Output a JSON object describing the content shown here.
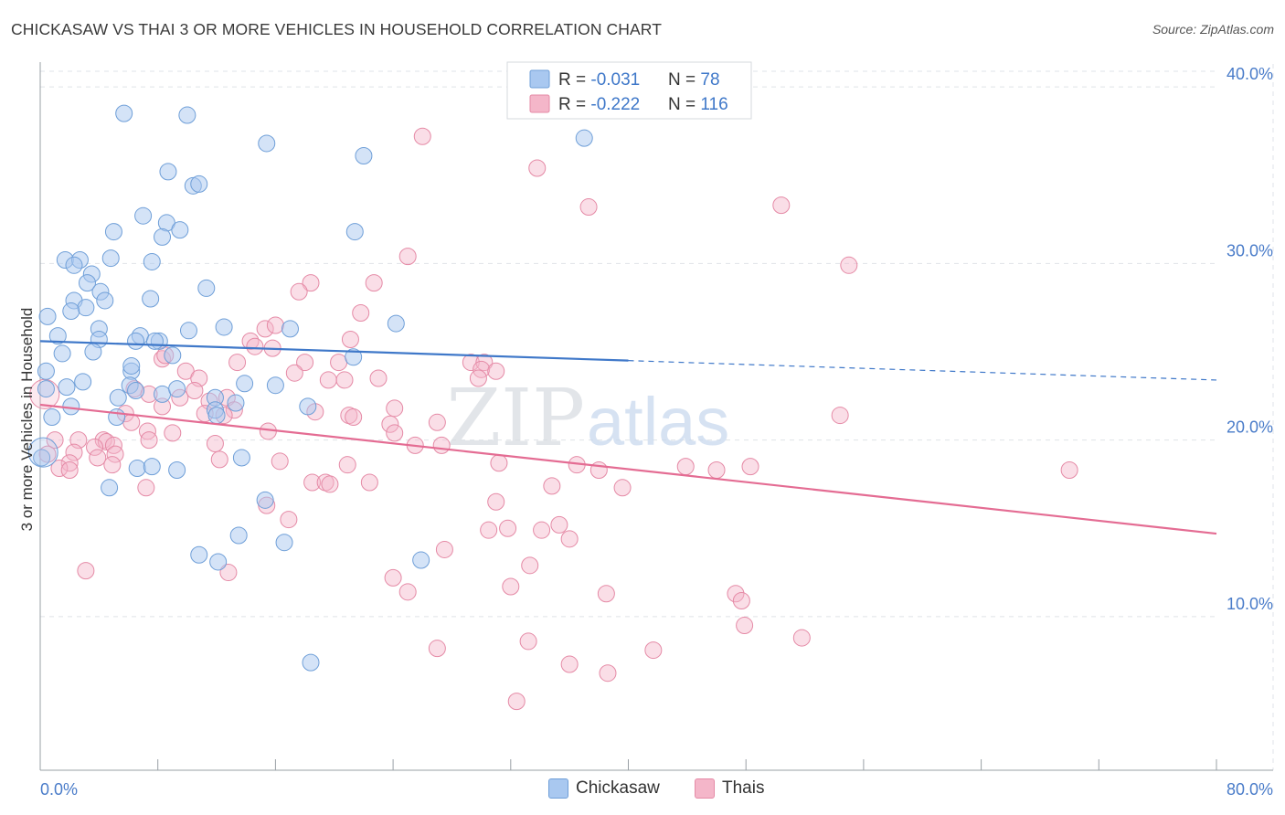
{
  "header": {
    "title": "CHICKASAW VS THAI 3 OR MORE VEHICLES IN HOUSEHOLD CORRELATION CHART",
    "source": "Source: ZipAtlas.com"
  },
  "watermark": {
    "zip": "ZIP",
    "atlas": "atlas"
  },
  "colors": {
    "blue_fill": "#a9c8f0",
    "blue_stroke": "#6f9fd8",
    "blue_line": "#3f78c9",
    "pink_fill": "#f4b6c9",
    "pink_stroke": "#e58aa6",
    "pink_line": "#e46c93",
    "axis_text": "#4a7cc9",
    "grid": "#dfe3e8"
  },
  "legend": {
    "rows": [
      {
        "r_label": "R = ",
        "r_value": "-0.031",
        "n_label": "N = ",
        "n_value": "78"
      },
      {
        "r_label": "R = ",
        "r_value": "-0.222",
        "n_label": "N = ",
        "n_value": "116"
      }
    ]
  },
  "chart_data": {
    "type": "scatter",
    "title": "CHICKASAW VS THAI 3 OR MORE VEHICLES IN HOUSEHOLD CORRELATION CHART",
    "xlabel": "",
    "ylabel": "3 or more Vehicles in Household",
    "xlim": [
      0,
      80
    ],
    "ylim": [
      1.3,
      41.3
    ],
    "x_tick_labels": [
      "0.0%",
      "80.0%"
    ],
    "y_ticks": [
      10,
      20,
      30,
      40
    ],
    "y_tick_labels": [
      "10.0%",
      "20.0%",
      "30.0%",
      "40.0%"
    ],
    "grid": true,
    "legend_position": "top-center",
    "series": [
      {
        "name": "Chickasaw",
        "color": "#a9c8f0",
        "trend": {
          "x0": 0,
          "y0": 25.6,
          "x1": 40,
          "y1": 24.5,
          "dash_x1": 80,
          "dash_y1": 23.4
        },
        "points": [
          [
            5.7,
            38.5
          ],
          [
            10.0,
            38.4
          ],
          [
            15.4,
            36.8
          ],
          [
            22.0,
            36.1
          ],
          [
            37.0,
            37.1
          ],
          [
            8.7,
            35.2
          ],
          [
            10.4,
            34.4
          ],
          [
            10.8,
            34.5
          ],
          [
            7.0,
            32.7
          ],
          [
            8.6,
            32.3
          ],
          [
            5.0,
            31.8
          ],
          [
            9.5,
            31.9
          ],
          [
            8.3,
            31.5
          ],
          [
            21.4,
            31.8
          ],
          [
            1.7,
            30.2
          ],
          [
            2.7,
            30.2
          ],
          [
            4.8,
            30.3
          ],
          [
            7.6,
            30.1
          ],
          [
            2.3,
            29.9
          ],
          [
            3.5,
            29.4
          ],
          [
            3.2,
            28.9
          ],
          [
            11.3,
            28.6
          ],
          [
            4.1,
            28.4
          ],
          [
            2.3,
            27.9
          ],
          [
            4.4,
            27.9
          ],
          [
            7.5,
            28.0
          ],
          [
            3.1,
            27.5
          ],
          [
            2.1,
            27.3
          ],
          [
            0.5,
            27.0
          ],
          [
            12.5,
            26.4
          ],
          [
            10.1,
            26.2
          ],
          [
            17.0,
            26.3
          ],
          [
            4.0,
            26.3
          ],
          [
            24.2,
            26.6
          ],
          [
            1.2,
            25.9
          ],
          [
            4.0,
            25.7
          ],
          [
            6.8,
            25.9
          ],
          [
            6.5,
            25.6
          ],
          [
            8.1,
            25.6
          ],
          [
            7.8,
            25.6
          ],
          [
            1.5,
            24.9
          ],
          [
            3.6,
            25.0
          ],
          [
            9.0,
            24.8
          ],
          [
            21.3,
            24.7
          ],
          [
            0.4,
            23.9
          ],
          [
            6.2,
            23.9
          ],
          [
            2.9,
            23.3
          ],
          [
            6.1,
            23.1
          ],
          [
            6.5,
            22.8
          ],
          [
            13.9,
            23.2
          ],
          [
            16.0,
            23.1
          ],
          [
            1.8,
            23.0
          ],
          [
            8.3,
            22.6
          ],
          [
            5.3,
            22.4
          ],
          [
            11.9,
            22.4
          ],
          [
            2.1,
            21.9
          ],
          [
            13.3,
            22.1
          ],
          [
            18.2,
            21.9
          ],
          [
            11.9,
            21.7
          ],
          [
            12.0,
            21.4
          ],
          [
            0.8,
            21.3
          ],
          [
            5.2,
            21.3
          ],
          [
            0.1,
            19.0
          ],
          [
            13.7,
            19.0
          ],
          [
            6.6,
            18.4
          ],
          [
            7.6,
            18.5
          ],
          [
            9.3,
            18.3
          ],
          [
            4.7,
            17.3
          ],
          [
            15.3,
            16.6
          ],
          [
            13.5,
            14.6
          ],
          [
            16.6,
            14.2
          ],
          [
            10.8,
            13.5
          ],
          [
            12.1,
            13.1
          ],
          [
            25.9,
            13.2
          ],
          [
            18.4,
            7.4
          ],
          [
            9.3,
            22.9
          ],
          [
            0.4,
            22.9
          ],
          [
            6.2,
            24.2
          ]
        ]
      },
      {
        "name": "Thais",
        "color": "#f4b6c9",
        "trend": {
          "x0": 0,
          "y0": 22.0,
          "x1": 80,
          "y1": 14.7
        },
        "points": [
          [
            26.0,
            37.2
          ],
          [
            33.8,
            35.4
          ],
          [
            37.3,
            33.2
          ],
          [
            50.4,
            33.3
          ],
          [
            25.0,
            30.4
          ],
          [
            55.0,
            29.9
          ],
          [
            18.4,
            28.9
          ],
          [
            17.6,
            28.4
          ],
          [
            22.7,
            28.9
          ],
          [
            21.8,
            27.2
          ],
          [
            15.3,
            26.3
          ],
          [
            16.0,
            26.5
          ],
          [
            14.3,
            25.6
          ],
          [
            14.6,
            25.3
          ],
          [
            21.1,
            25.7
          ],
          [
            15.8,
            25.2
          ],
          [
            8.3,
            24.6
          ],
          [
            8.5,
            24.8
          ],
          [
            13.4,
            24.4
          ],
          [
            18.0,
            24.4
          ],
          [
            20.3,
            24.4
          ],
          [
            29.3,
            24.4
          ],
          [
            30.2,
            24.4
          ],
          [
            30.0,
            24.0
          ],
          [
            31.0,
            23.9
          ],
          [
            29.8,
            23.5
          ],
          [
            9.9,
            23.9
          ],
          [
            10.8,
            23.5
          ],
          [
            17.3,
            23.8
          ],
          [
            19.6,
            23.4
          ],
          [
            23.0,
            23.5
          ],
          [
            6.4,
            22.9
          ],
          [
            10.5,
            22.8
          ],
          [
            7.4,
            22.6
          ],
          [
            9.5,
            22.4
          ],
          [
            11.5,
            22.2
          ],
          [
            12.7,
            22.4
          ],
          [
            8.3,
            21.9
          ],
          [
            20.7,
            23.4
          ],
          [
            24.1,
            21.8
          ],
          [
            13.2,
            21.7
          ],
          [
            5.8,
            21.5
          ],
          [
            11.2,
            21.5
          ],
          [
            12.5,
            21.4
          ],
          [
            18.7,
            21.6
          ],
          [
            21.0,
            21.4
          ],
          [
            21.3,
            21.3
          ],
          [
            54.4,
            21.4
          ],
          [
            6.2,
            21.0
          ],
          [
            23.8,
            20.9
          ],
          [
            27.0,
            21.0
          ],
          [
            15.5,
            20.5
          ],
          [
            7.3,
            20.5
          ],
          [
            9.0,
            20.4
          ],
          [
            24.1,
            20.4
          ],
          [
            2.6,
            20.0
          ],
          [
            4.3,
            20.0
          ],
          [
            4.5,
            19.9
          ],
          [
            5.0,
            19.7
          ],
          [
            3.7,
            19.6
          ],
          [
            7.4,
            20.0
          ],
          [
            11.9,
            19.8
          ],
          [
            25.5,
            19.7
          ],
          [
            27.3,
            19.7
          ],
          [
            1.0,
            20.0
          ],
          [
            0.5,
            19.2
          ],
          [
            2.3,
            19.3
          ],
          [
            3.9,
            19.0
          ],
          [
            5.1,
            19.2
          ],
          [
            2.0,
            18.7
          ],
          [
            1.3,
            18.4
          ],
          [
            2.0,
            18.3
          ],
          [
            4.9,
            18.6
          ],
          [
            12.2,
            18.9
          ],
          [
            16.3,
            18.8
          ],
          [
            20.9,
            18.6
          ],
          [
            31.2,
            18.7
          ],
          [
            36.5,
            18.6
          ],
          [
            38.0,
            18.3
          ],
          [
            43.9,
            18.5
          ],
          [
            46.0,
            18.3
          ],
          [
            48.3,
            18.5
          ],
          [
            70.0,
            18.3
          ],
          [
            18.5,
            17.6
          ],
          [
            19.4,
            17.6
          ],
          [
            19.7,
            17.5
          ],
          [
            22.4,
            17.6
          ],
          [
            34.8,
            17.4
          ],
          [
            39.6,
            17.3
          ],
          [
            15.4,
            16.3
          ],
          [
            31.0,
            16.5
          ],
          [
            16.9,
            15.5
          ],
          [
            30.5,
            14.9
          ],
          [
            31.8,
            15.0
          ],
          [
            34.1,
            14.9
          ],
          [
            35.3,
            15.2
          ],
          [
            36.0,
            14.4
          ],
          [
            27.5,
            13.8
          ],
          [
            33.3,
            12.9
          ],
          [
            3.1,
            12.6
          ],
          [
            12.8,
            12.5
          ],
          [
            24.0,
            12.2
          ],
          [
            25.0,
            11.4
          ],
          [
            32.0,
            11.7
          ],
          [
            38.5,
            11.3
          ],
          [
            47.3,
            11.3
          ],
          [
            47.7,
            10.9
          ],
          [
            47.9,
            9.5
          ],
          [
            51.8,
            8.8
          ],
          [
            33.2,
            8.6
          ],
          [
            27.0,
            8.2
          ],
          [
            41.7,
            8.1
          ],
          [
            36.0,
            7.3
          ],
          [
            38.6,
            6.8
          ],
          [
            32.4,
            5.2
          ],
          [
            7.2,
            17.3
          ]
        ]
      }
    ]
  },
  "bottom_legend": {
    "items": [
      "Chickasaw",
      "Thais"
    ]
  }
}
